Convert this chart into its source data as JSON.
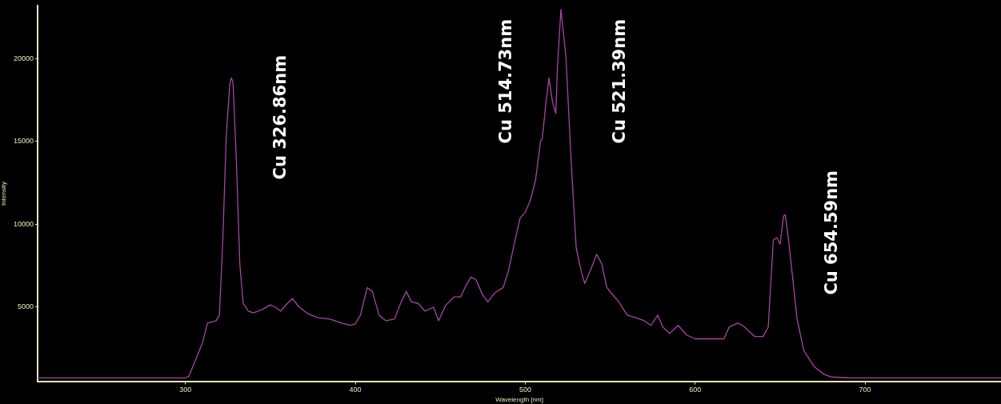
{
  "chart_data": {
    "type": "line",
    "xlabel": "Wavelength [nm]",
    "ylabel": "Intensity",
    "xlim": [
      213,
      780
    ],
    "ylim": [
      500,
      23200
    ],
    "xticks": [
      300,
      400,
      500,
      600,
      700
    ],
    "yticks": [
      5000,
      10000,
      15000,
      20000
    ],
    "grid": false,
    "legend": false,
    "marker": "none",
    "line_style": "solid",
    "series": [
      {
        "color": "#a546a5",
        "x": [
          213,
          300,
          302,
          310,
          313,
          316,
          318,
          320,
          322,
          324,
          326,
          327,
          328,
          330,
          332,
          334,
          337,
          340,
          345,
          350,
          353,
          356,
          360,
          363,
          367,
          372,
          378,
          385,
          392,
          397,
          400,
          403,
          407,
          410,
          414,
          418,
          423,
          427,
          430,
          433,
          437,
          441,
          446,
          449,
          453,
          458,
          462,
          465,
          468,
          471,
          475,
          478,
          482,
          487,
          490,
          494,
          497,
          500,
          503,
          506,
          509,
          510,
          512,
          514,
          516,
          518,
          519,
          521,
          524,
          527,
          530,
          533,
          535,
          539,
          542,
          545,
          548,
          551,
          555,
          560,
          565,
          570,
          574,
          578,
          581,
          585,
          590,
          595,
          600,
          610,
          617,
          620,
          625,
          628,
          635,
          640,
          643,
          646,
          648,
          650,
          652,
          653,
          655,
          657,
          660,
          664,
          670,
          676,
          680,
          690,
          780
        ],
        "values": [
          700,
          700,
          800,
          2820,
          4020,
          4100,
          4150,
          4500,
          9040,
          15260,
          18370,
          18850,
          18600,
          13800,
          7600,
          5200,
          4740,
          4640,
          4830,
          5120,
          4980,
          4740,
          5210,
          5500,
          4980,
          4590,
          4350,
          4260,
          4020,
          3880,
          3970,
          4500,
          6170,
          5930,
          4500,
          4160,
          4260,
          5300,
          5930,
          5300,
          5210,
          4740,
          4980,
          4160,
          5070,
          5600,
          5600,
          6270,
          6800,
          6650,
          5700,
          5300,
          5840,
          6170,
          7130,
          9040,
          10380,
          10720,
          11440,
          12630,
          15020,
          15170,
          17180,
          18850,
          17420,
          16700,
          19570,
          23000,
          20050,
          13830,
          8560,
          7130,
          6410,
          7370,
          8180,
          7610,
          6170,
          5790,
          5310,
          4500,
          4350,
          4160,
          3880,
          4500,
          3780,
          3400,
          3880,
          3300,
          3070,
          3070,
          3070,
          3780,
          4020,
          3880,
          3210,
          3210,
          3780,
          9040,
          9190,
          8800,
          10480,
          10570,
          9040,
          7130,
          4260,
          2340,
          1390,
          910,
          760,
          710,
          700
        ]
      }
    ],
    "annotations": [
      "Cu 326.86nm",
      "Cu 514.73nm",
      "Cu 521.39nm",
      "Cu 654.59nm"
    ]
  }
}
